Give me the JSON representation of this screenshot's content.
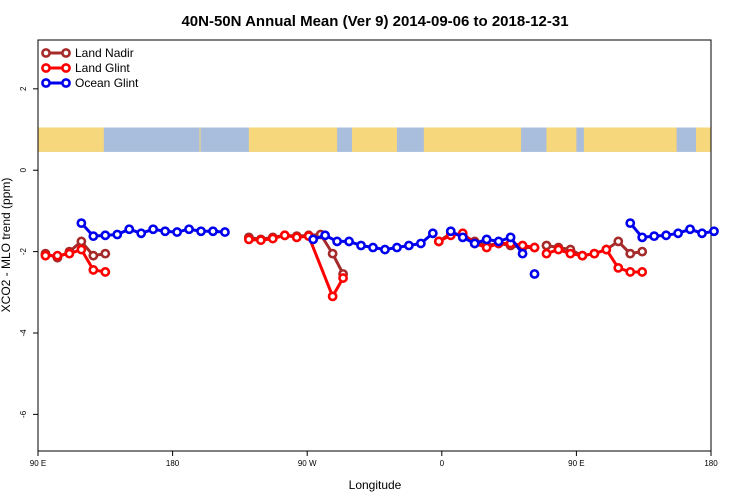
{
  "chart_data": {
    "type": "line",
    "title": "40N-50N Annual Mean (Ver 9)   2014-09-06 to 2018-12-31",
    "xlabel": "Longitude",
    "ylabel": "XCO2 - MLO trend (ppm)",
    "xlim": [
      90,
      450
    ],
    "ylim": [
      -6.9,
      3.2
    ],
    "x_ticks": [
      {
        "value": 90,
        "label": "90 E"
      },
      {
        "value": 180,
        "label": "180"
      },
      {
        "value": 270,
        "label": "90 W"
      },
      {
        "value": 360,
        "label": "0"
      },
      {
        "value": 450,
        "label": "90 E"
      },
      {
        "value": 540,
        "label": "180"
      }
    ],
    "y_ticks": [
      {
        "value": 2,
        "label": "2"
      },
      {
        "value": 0,
        "label": "0"
      },
      {
        "value": -2,
        "label": "-2"
      },
      {
        "value": -4,
        "label": "-4"
      },
      {
        "value": -6,
        "label": "-6"
      }
    ],
    "grid": false,
    "legend": "top-left",
    "map_strip": {
      "ymin": 0.45,
      "ymax": 1.05,
      "land_color": "#f7d77c",
      "ocean_color": "#a9bedd"
    },
    "series": [
      {
        "name": "Land Nadir",
        "color": "#a52a2a",
        "x": [
          95,
          103,
          111,
          119,
          127,
          135
        ],
        "y": [
          -2.05,
          -2.15,
          -2.0,
          -1.75,
          -2.1,
          -2.05
        ],
        "segments": [
          {
            "x": [
              95,
              103,
              111,
              119,
              127,
              135
            ],
            "y": [
              -2.05,
              -2.15,
              -2.0,
              -1.75,
              -2.1,
              -2.05
            ]
          },
          {
            "x": [
              231,
              239,
              247,
              255,
              263,
              271,
              279,
              287,
              294
            ],
            "y": [
              -1.65,
              -1.7,
              -1.65,
              -1.6,
              -1.62,
              -1.6,
              -1.58,
              -2.05,
              -2.55
            ]
          },
          {
            "x": [
              358,
              366,
              374,
              382,
              390,
              398,
              406,
              414,
              422
            ],
            "y": [
              -1.75,
              -1.55,
              -1.6,
              -1.75,
              -1.85,
              -1.8,
              -1.85,
              -1.9,
              -1.9
            ]
          },
          {
            "x": [
              430,
              438,
              446,
              454,
              462,
              470,
              478,
              486,
              494
            ],
            "y": [
              -1.85,
              -1.9,
              -1.95,
              -2.1,
              -2.05,
              -1.95,
              -1.75,
              -2.05,
              -2.0
            ]
          }
        ]
      },
      {
        "name": "Land Glint",
        "color": "#ff0000",
        "segments": [
          {
            "x": [
              95,
              103,
              111,
              119,
              127,
              135
            ],
            "y": [
              -2.1,
              -2.1,
              -2.05,
              -1.95,
              -2.45,
              -2.5
            ]
          },
          {
            "x": [
              231,
              239,
              247,
              255,
              263,
              271,
              287,
              294
            ],
            "y": [
              -1.7,
              -1.72,
              -1.68,
              -1.6,
              -1.65,
              -1.62,
              -3.1,
              -2.65
            ]
          },
          {
            "x": [
              358,
              366,
              374,
              382,
              390,
              398,
              406,
              414,
              422
            ],
            "y": [
              -1.75,
              -1.6,
              -1.55,
              -1.8,
              -1.9,
              -1.8,
              -1.8,
              -1.85,
              -1.9
            ]
          },
          {
            "x": [
              430,
              438,
              446,
              454,
              462,
              470,
              478,
              486,
              494
            ],
            "y": [
              -2.05,
              -1.95,
              -2.05,
              -2.1,
              -2.05,
              -1.95,
              -2.4,
              -2.5,
              -2.5
            ]
          }
        ]
      },
      {
        "name": "Ocean Glint",
        "color": "#0000ee",
        "segments": [
          {
            "x": [
              119,
              127,
              135,
              143,
              151,
              159,
              167,
              175,
              183,
              191,
              199,
              207,
              215
            ],
            "y": [
              -1.3,
              -1.62,
              -1.6,
              -1.58,
              -1.45,
              -1.55,
              -1.45,
              -1.5,
              -1.52,
              -1.45,
              -1.5,
              -1.5,
              -1.52
            ]
          },
          {
            "x": [
              274,
              282,
              290,
              298,
              306,
              314,
              322,
              330,
              338,
              346,
              354
            ],
            "y": [
              -1.7,
              -1.6,
              -1.75,
              -1.75,
              -1.85,
              -1.9,
              -1.95,
              -1.9,
              -1.85,
              -1.8,
              -1.55
            ]
          },
          {
            "x": [
              366,
              374,
              382,
              390,
              398,
              406,
              414
            ],
            "y": [
              -1.5,
              -1.65,
              -1.8,
              -1.7,
              -1.75,
              -1.65,
              -2.05
            ]
          },
          {
            "x": [
              422
            ],
            "y": [
              -2.55
            ]
          },
          {
            "x": [
              486,
              494,
              502,
              510,
              518,
              526,
              534,
              542
            ],
            "y": [
              -1.3,
              -1.65,
              -1.62,
              -1.6,
              -1.55,
              -1.45,
              -1.55,
              -1.5
            ]
          }
        ]
      }
    ]
  }
}
